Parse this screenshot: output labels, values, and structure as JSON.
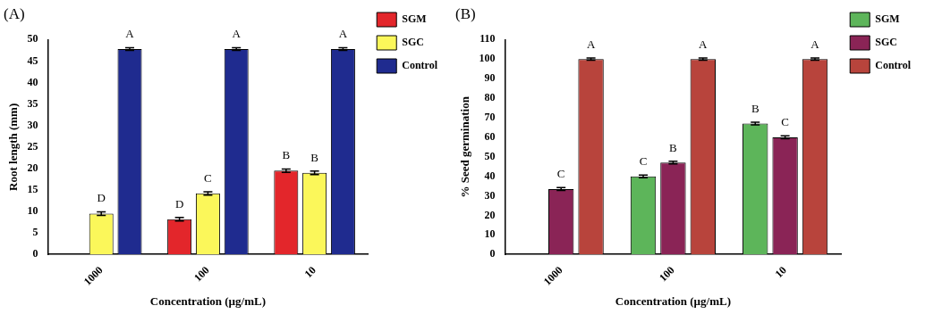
{
  "chart_data": [
    {
      "type": "bar",
      "title": "(A)",
      "x_label": "Concentration (µg/mL)",
      "y_label": "Root length (mm)",
      "categories": [
        "1000",
        "100",
        "10"
      ],
      "series": [
        {
          "name": "SGM",
          "color": "#e3262b",
          "values": [
            null,
            8.2,
            19.5
          ],
          "errors": [
            null,
            0.4,
            0.4
          ],
          "letters": [
            null,
            "D",
            "B"
          ]
        },
        {
          "name": "SGC",
          "color": "#fbf75a",
          "values": [
            9.5,
            14.2,
            19.0
          ],
          "errors": [
            0.4,
            0.4,
            0.4
          ],
          "letters": [
            "D",
            "C",
            "B"
          ]
        },
        {
          "name": "Control",
          "color": "#1f2b8f",
          "values": [
            47.8,
            47.8,
            47.8
          ],
          "errors": [
            0.3,
            0.3,
            0.3
          ],
          "letters": [
            "A",
            "A",
            "A"
          ]
        }
      ],
      "ylim": [
        0,
        50
      ],
      "yticks": [
        0,
        5,
        10,
        15,
        20,
        25,
        30,
        35,
        40,
        45,
        50
      ],
      "grid": false,
      "legend": "right"
    },
    {
      "type": "bar",
      "title": "(B)",
      "x_label": "Concentration (µg/mL)",
      "y_label": "% Seed germination",
      "categories": [
        "1000",
        "100",
        "10"
      ],
      "series": [
        {
          "name": "SGM",
          "color": "#5db55a",
          "values": [
            null,
            40.0,
            67.0
          ],
          "errors": [
            null,
            0.7,
            0.7
          ],
          "letters": [
            null,
            "C",
            "B"
          ]
        },
        {
          "name": "SGC",
          "color": "#8a2456",
          "values": [
            33.5,
            47.0,
            60.0
          ],
          "errors": [
            0.7,
            0.7,
            0.7
          ],
          "letters": [
            "C",
            "B",
            "C"
          ]
        },
        {
          "name": "Control",
          "color": "#b8443c",
          "values": [
            100,
            100,
            100
          ],
          "errors": [
            0.6,
            0.6,
            0.6
          ],
          "letters": [
            "A",
            "A",
            "A"
          ]
        }
      ],
      "ylim": [
        0,
        110
      ],
      "yticks": [
        0,
        10,
        20,
        30,
        40,
        50,
        60,
        70,
        80,
        90,
        100,
        110
      ],
      "grid": false,
      "legend": "right"
    }
  ]
}
